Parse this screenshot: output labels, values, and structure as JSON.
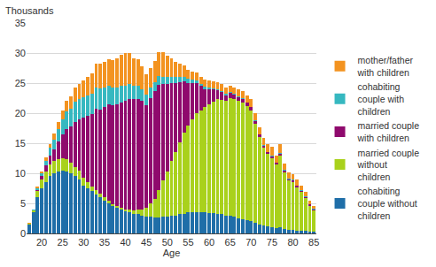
{
  "chart_data": {
    "type": "bar",
    "stacked": true,
    "ylabel": "Thousands",
    "xlabel": "Age",
    "x": [
      17,
      18,
      19,
      20,
      21,
      22,
      23,
      24,
      25,
      26,
      27,
      28,
      29,
      30,
      31,
      32,
      33,
      34,
      35,
      36,
      37,
      38,
      39,
      40,
      41,
      42,
      43,
      44,
      45,
      46,
      47,
      48,
      49,
      50,
      51,
      52,
      53,
      54,
      55,
      56,
      57,
      58,
      59,
      60,
      61,
      62,
      63,
      64,
      65,
      66,
      67,
      68,
      69,
      70,
      71,
      72,
      73,
      74,
      75,
      76,
      77,
      78,
      79,
      80,
      81,
      82,
      83,
      84,
      85
    ],
    "xlim": [
      16.4,
      85.6
    ],
    "xticks": [
      20,
      25,
      30,
      35,
      40,
      45,
      50,
      55,
      60,
      65,
      70,
      75,
      80,
      85
    ],
    "ylim": [
      0,
      35
    ],
    "yticks": [
      0,
      5,
      10,
      15,
      20,
      25,
      30,
      35
    ],
    "grid": true,
    "legend": "right",
    "series": [
      {
        "name": "cohabiting couple without children",
        "color": "#1f6ea8",
        "values": [
          1.5,
          3.5,
          6,
          7.5,
          8.5,
          9.5,
          10,
          10.3,
          10.5,
          10.3,
          10,
          9.5,
          9,
          8,
          7.5,
          7,
          6.5,
          6,
          5.5,
          5,
          4.5,
          4.2,
          4,
          3.7,
          3.5,
          3.3,
          3.2,
          3,
          2.8,
          2.8,
          2.7,
          2.7,
          2.8,
          2.8,
          3,
          3,
          3.2,
          3.3,
          3.5,
          3.5,
          3.5,
          3.5,
          3.5,
          3.4,
          3.4,
          3.3,
          3.2,
          3,
          3,
          2.8,
          2.5,
          2.3,
          2.2,
          2,
          1.8,
          1.5,
          1.3,
          1.2,
          1,
          0.9,
          1,
          0.7,
          0.6,
          0.6,
          0.5,
          0.4,
          0.4,
          0.3,
          0.3
        ]
      },
      {
        "name": "married couple without children",
        "color": "#a9d11c",
        "values": [
          0.1,
          0.3,
          1,
          1.5,
          1.8,
          2,
          2,
          2,
          2,
          2,
          1.8,
          1.6,
          1.4,
          1.2,
          1,
          0.8,
          0.7,
          0.6,
          0.5,
          0.4,
          0.3,
          0.3,
          0.3,
          0.3,
          0.4,
          0.5,
          0.7,
          1,
          1.5,
          2.2,
          3,
          4.5,
          6,
          7.5,
          9,
          10.5,
          12,
          13.5,
          14.5,
          15.5,
          16.5,
          17,
          17.5,
          18,
          18.5,
          19,
          19,
          19,
          19.5,
          19.5,
          19.5,
          19.5,
          19,
          18.5,
          16.5,
          14.5,
          13,
          12,
          11.5,
          10.5,
          12,
          9.5,
          8.2,
          8,
          7.2,
          6.5,
          5.5,
          4.3,
          3.5
        ]
      },
      {
        "name": "married couple with children",
        "color": "#8f0a6d",
        "values": [
          0,
          0,
          0.2,
          0.5,
          1,
          1.5,
          2,
          3,
          4,
          5,
          6,
          7.5,
          8.5,
          10,
          11,
          12,
          13.5,
          14,
          15,
          16,
          16.5,
          17,
          17.5,
          18,
          18.5,
          18.5,
          18.5,
          18,
          17,
          17.5,
          18,
          17.5,
          16,
          14.5,
          13,
          11.5,
          10,
          8.5,
          7,
          6,
          5,
          4,
          3,
          2.5,
          2,
          1.5,
          1.3,
          1,
          0.9,
          0.8,
          0.7,
          0.6,
          0.5,
          0.5,
          0.4,
          0.4,
          0.3,
          0.3,
          0.3,
          0.3,
          0.3,
          0.3,
          0.2,
          0.2,
          0.2,
          0.2,
          0.2,
          0.2,
          0.2
        ]
      },
      {
        "name": "cohabiting couple with children",
        "color": "#36b8c0",
        "values": [
          0,
          0.1,
          0.3,
          0.5,
          0.8,
          1.2,
          1.6,
          2,
          2.5,
          3,
          3,
          3.3,
          3.5,
          3.5,
          3.5,
          3.5,
          3.5,
          3.5,
          3.3,
          3.2,
          3,
          2.8,
          2.7,
          2.5,
          2.4,
          2.3,
          2.2,
          2,
          1.8,
          1.7,
          1.5,
          1.5,
          1.3,
          1.2,
          1.1,
          1,
          0.9,
          0.8,
          0.7,
          0.6,
          0.5,
          0.4,
          0.4,
          0.3,
          0.2,
          0.2,
          0.2,
          0.2,
          0.2,
          0.1,
          0.1,
          0.1,
          0.1,
          0.1,
          0.1,
          0.1,
          0.1,
          0.1,
          0.1,
          0.1,
          0.1,
          0.1,
          0.1,
          0.1,
          0.1,
          0.1,
          0.1,
          0.1,
          0.1
        ]
      },
      {
        "name": "mother/father with children",
        "color": "#f39320",
        "values": [
          0.1,
          0.1,
          0.3,
          0.3,
          0.5,
          0.7,
          1,
          1.3,
          1.5,
          1.7,
          2,
          2.3,
          2.5,
          2.8,
          3,
          3.3,
          4,
          4.2,
          4.2,
          4.3,
          4.5,
          4.8,
          5.2,
          5.5,
          5.2,
          4.5,
          4.3,
          3.8,
          3.4,
          3.3,
          3.5,
          4,
          4,
          3.5,
          3,
          2.5,
          2.2,
          1.8,
          1.5,
          1.3,
          1.3,
          1.2,
          1.2,
          1.2,
          1.2,
          1.1,
          1.1,
          1,
          1,
          1,
          1.1,
          1.2,
          1.2,
          1.3,
          1.2,
          1.1,
          1.2,
          1.2,
          1.5,
          1.2,
          1.5,
          1,
          1,
          1,
          0.9,
          0.8,
          0.7,
          0.6,
          0.5
        ]
      }
    ]
  }
}
